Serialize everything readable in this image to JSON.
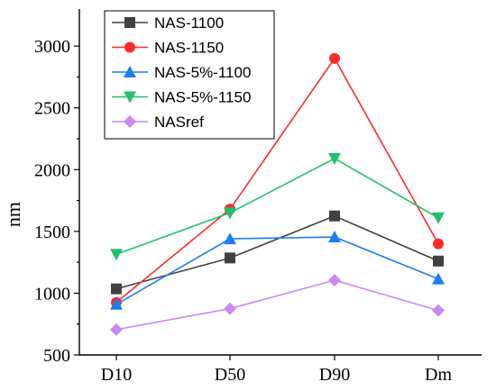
{
  "chart_data": {
    "type": "line",
    "title": "",
    "xlabel": "",
    "ylabel": "nm",
    "categories": [
      "D10",
      "D50",
      "D90",
      "Dm"
    ],
    "ylim": [
      500,
      3300
    ],
    "yticks": [
      500,
      1000,
      1500,
      2000,
      2500,
      3000
    ],
    "grid": false,
    "legend_position": "top-left",
    "series": [
      {
        "name": "NAS-1100",
        "color": "#404040",
        "marker": "square",
        "values": [
          1035,
          1285,
          1625,
          1260
        ]
      },
      {
        "name": "NAS-1150",
        "color": "#ff2a2a",
        "marker": "circle",
        "values": [
          925,
          1680,
          2900,
          1400
        ]
      },
      {
        "name": "NAS-5%-1100",
        "color": "#1a7ff0",
        "marker": "triangle-up",
        "values": [
          910,
          1440,
          1455,
          1115
        ]
      },
      {
        "name": "NAS-5%-1150",
        "color": "#22c06a",
        "marker": "triangle-down",
        "values": [
          1315,
          1650,
          2090,
          1610
        ]
      },
      {
        "name": "NASref",
        "color": "#cc88ee",
        "marker": "diamond",
        "values": [
          705,
          875,
          1105,
          860
        ]
      }
    ]
  }
}
